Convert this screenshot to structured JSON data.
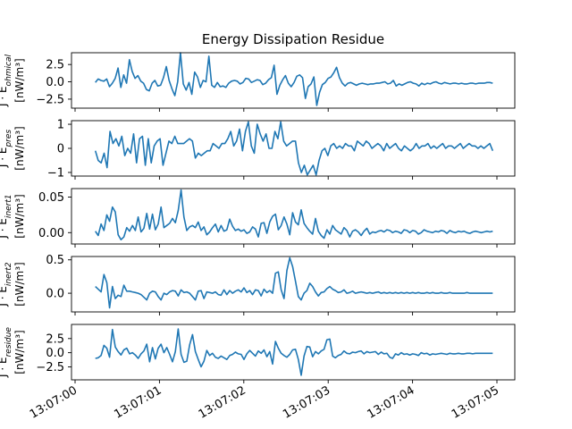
{
  "figure": {
    "title": "Energy Dissipation Residue",
    "line_color": "#1f77b4"
  },
  "chart_data": [
    {
      "type": "line",
      "ylabel_top": "J · E_ohmical",
      "ylabel_unit": "[nW/m³]",
      "ylim": [
        -3.8,
        4.2
      ],
      "yticks": [
        -2.5,
        0.0,
        2.5
      ],
      "ytick_labels": [
        "−2.5",
        "0.0",
        "2.5"
      ],
      "series": [
        {
          "values": [
            -0.1,
            0.4,
            0.2,
            0.1,
            0.4,
            -0.7,
            -0.2,
            0.5,
            2.0,
            -0.8,
            1.0,
            -0.2,
            3.2,
            1.5,
            0.5,
            0.9,
            0.1,
            -0.2,
            -1.1,
            -1.3,
            -0.2,
            0.2,
            -0.6,
            -0.5,
            0.6,
            2.2,
            0.2,
            -1.0,
            -2.0,
            0.0,
            4.2,
            -0.3,
            -1.2,
            -0.1,
            -1.8,
            1.4,
            0.7,
            -0.8,
            0.2,
            0.0,
            3.7,
            -0.5,
            -0.8,
            -0.1,
            -0.7,
            -0.6,
            -0.8,
            -0.2,
            0.1,
            0.2,
            0.1,
            -0.3,
            -0.1,
            0.5,
            0.4,
            -0.1,
            0.1,
            0.3,
            0.2,
            -0.4,
            -0.2,
            0.3,
            0.6,
            2.4,
            -1.8,
            -0.5,
            0.3,
            0.9,
            -0.2,
            -0.7,
            -0.1,
            0.8,
            1.0,
            0.6,
            -2.4,
            -0.7,
            -0.3,
            0.7,
            -3.4,
            -1.5,
            -0.4,
            -0.1,
            0.5,
            0.7,
            1.3,
            2.1,
            0.6,
            -0.2,
            -0.6,
            -0.2,
            -0.1,
            -0.3,
            -0.5,
            -0.3,
            -0.2,
            -0.3,
            -0.4,
            -0.3,
            -0.3,
            -0.2,
            -0.2,
            -0.1,
            0.0,
            -0.3,
            -0.2,
            0.2,
            -0.6,
            -0.3,
            -0.5,
            -0.3,
            -0.1,
            0.0,
            -0.2,
            -0.3,
            -0.6,
            -0.2,
            -0.4,
            -0.2,
            -0.3,
            -0.1,
            0.0,
            -0.2,
            -0.3,
            -0.1,
            -0.2,
            -0.3,
            -0.2,
            -0.2,
            -0.3,
            -0.2,
            -0.3,
            -0.3,
            -0.2,
            -0.2,
            -0.3,
            -0.2,
            -0.2,
            -0.2,
            -0.1,
            -0.1,
            -0.2
          ]
        }
      ]
    },
    {
      "type": "line",
      "ylabel_top": "J · E_pres",
      "ylabel_unit": "[nW/m³]",
      "ylim": [
        -1.15,
        1.15
      ],
      "yticks": [
        -1,
        0,
        1
      ],
      "ytick_labels": [
        "−1",
        "0",
        "1"
      ],
      "series": [
        {
          "values": [
            -0.1,
            -0.5,
            -0.6,
            -0.2,
            -0.8,
            0.7,
            0.2,
            0.4,
            0.1,
            0.5,
            -0.3,
            0.0,
            -0.2,
            0.6,
            -0.6,
            0.4,
            0.5,
            -0.7,
            0.4,
            -0.6,
            0.1,
            0.3,
            0.4,
            -0.7,
            -0.2,
            0.3,
            0.2,
            0.5,
            0.2,
            0.2,
            0.2,
            0.3,
            0.4,
            0.3,
            -0.4,
            -0.2,
            -0.3,
            -0.2,
            -0.1,
            -0.1,
            0.2,
            0.1,
            0.0,
            0.2,
            0.2,
            0.4,
            0.7,
            0.1,
            0.3,
            0.8,
            -0.1,
            0.7,
            1.1,
            0.1,
            -0.2,
            1.0,
            0.6,
            0.3,
            0.6,
            0.0,
            0.0,
            0.7,
            0.4,
            1.1,
            0.3,
            0.1,
            0.2,
            0.3,
            0.3,
            -0.6,
            -1.0,
            -0.7,
            -1.1,
            -0.9,
            -0.7,
            -1.1,
            -0.5,
            -0.1,
            0.0,
            -0.3,
            0.1,
            0.2,
            0.0,
            0.1,
            0.0,
            0.2,
            0.1,
            0.1,
            -0.1,
            0.3,
            0.2,
            0.1,
            0.3,
            0.2,
            0.0,
            0.1,
            0.2,
            0.1,
            -0.1,
            0.2,
            0.0,
            0.1,
            0.2,
            0.0,
            -0.1,
            0.1,
            0.0,
            -0.1,
            0.0,
            0.2,
            0.0,
            0.1,
            0.1,
            0.2,
            0.0,
            0.1,
            0.0,
            0.1,
            0.2,
            0.0,
            0.1,
            0.1,
            0.0,
            0.1,
            0.2,
            0.0,
            0.1,
            0.2,
            0.1,
            0.1,
            0.0,
            0.1,
            0.0,
            0.1,
            0.2,
            -0.1
          ]
        }
      ]
    },
    {
      "type": "line",
      "ylabel_top": "J · E_inert1",
      "ylabel_unit": "[nW/m³]",
      "ylim": [
        -0.016,
        0.062
      ],
      "yticks": [
        0.0,
        0.05
      ],
      "ytick_labels": [
        "0.00",
        "0.05"
      ],
      "series": [
        {
          "values": [
            0.002,
            -0.004,
            0.012,
            0.003,
            0.025,
            0.016,
            0.036,
            0.029,
            -0.003,
            -0.01,
            -0.006,
            0.007,
            0.002,
            0.01,
            0.003,
            0.022,
            0.001,
            0.006,
            0.027,
            0.005,
            0.026,
            0.004,
            0.012,
            0.036,
            0.007,
            0.01,
            0.013,
            0.02,
            0.014,
            0.031,
            0.06,
            0.022,
            0.003,
            0.008,
            0.01,
            0.007,
            0.015,
            0.003,
            0.008,
            -0.003,
            0.001,
            0.007,
            0.012,
            0.001,
            0.01,
            0.002,
            0.004,
            0.019,
            0.009,
            0.003,
            0.005,
            0.002,
            0.004,
            -0.001,
            0.001,
            0.008,
            0.005,
            -0.006,
            0.013,
            0.014,
            -0.001,
            0.015,
            0.023,
            0.026,
            0.004,
            0.01,
            0.022,
            0.012,
            -0.003,
            0.028,
            0.015,
            0.011,
            0.032,
            0.013,
            0.007,
            0.002,
            -0.002,
            0.02,
            0.002,
            -0.004,
            -0.008,
            0.004,
            -0.002,
            0.01,
            0.004,
            0.001,
            -0.002,
            0.007,
            0.003,
            -0.006,
            0.002,
            0.004,
            0.001,
            -0.004,
            0.002,
            0.006,
            -0.002,
            0.001,
            0.0,
            0.002,
            0.003,
            0.001,
            0.004,
            0.003,
            0.0,
            0.002,
            0.001,
            -0.001,
            0.004,
            0.003,
            0.0,
            0.003,
            0.002,
            -0.002,
            0.0,
            0.004,
            0.002,
            0.001,
            0.0,
            0.002,
            0.001,
            0.003,
            0.002,
            -0.001,
            0.003,
            0.001,
            0.0,
            0.002,
            0.001,
            0.002,
            0.0,
            -0.001,
            0.001,
            0.002,
            0.001,
            0.0,
            0.001,
            0.002,
            0.001,
            0.002
          ]
        }
      ]
    },
    {
      "type": "line",
      "ylabel_top": "J · E_inert2",
      "ylabel_unit": "[nW/m³]",
      "ylim": [
        -0.28,
        0.55
      ],
      "yticks": [
        0.0,
        0.5
      ],
      "ytick_labels": [
        "0.0",
        "0.5"
      ],
      "series": [
        {
          "values": [
            0.1,
            0.06,
            0.02,
            0.28,
            0.16,
            -0.22,
            0.1,
            -0.08,
            -0.03,
            -0.05,
            0.12,
            0.03,
            0.03,
            0.02,
            0.01,
            0.0,
            -0.02,
            -0.06,
            -0.1,
            0.0,
            0.03,
            0.02,
            -0.05,
            -0.1,
            0.0,
            -0.02,
            0.02,
            0.04,
            0.03,
            -0.04,
            0.05,
            0.01,
            0.02,
            0.0,
            -0.05,
            -0.1,
            0.03,
            0.04,
            -0.08,
            0.02,
            0.01,
            0.0,
            0.02,
            -0.02,
            -0.03,
            0.05,
            -0.02,
            0.04,
            0.0,
            0.03,
            0.05,
            0.02,
            0.08,
            0.01,
            0.04,
            -0.02,
            0.05,
            0.04,
            -0.04,
            0.06,
            0.01,
            0.04,
            0.0,
            0.3,
            0.32,
            0.05,
            -0.08,
            0.34,
            0.53,
            0.4,
            0.18,
            -0.05,
            -0.1,
            0.0,
            0.04,
            0.15,
            0.1,
            0.02,
            -0.04,
            0.01,
            0.02,
            0.07,
            0.1,
            0.06,
            0.04,
            0.01,
            0.02,
            0.05,
            0.0,
            0.01,
            0.03,
            0.0,
            0.01,
            0.02,
            0.01,
            0.0,
            0.01,
            0.0,
            0.01,
            0.02,
            0.0,
            0.01,
            0.0,
            0.01,
            0.0,
            0.01,
            0.0,
            0.01,
            0.0,
            0.01,
            0.0,
            0.01,
            0.0,
            0.01,
            0.0,
            0.0,
            0.01,
            0.0,
            0.01,
            0.0,
            0.0,
            0.01,
            0.0,
            0.0,
            0.01,
            0.0,
            0.0,
            0.0,
            0.0,
            0.0,
            0.01,
            0.0,
            0.0,
            0.0,
            0.0,
            0.0,
            0.0,
            0.0,
            0.0,
            0.0
          ]
        }
      ]
    },
    {
      "type": "line",
      "ylabel_top": "J · E_residue",
      "ylabel_unit": "[nW/m³]",
      "ylim": [
        -4.8,
        5.0
      ],
      "yticks": [
        -2.5,
        0.0,
        2.5
      ],
      "ytick_labels": [
        "−2.5",
        "0.0",
        "2.5"
      ],
      "series": [
        {
          "values": [
            -1.0,
            -0.9,
            -0.5,
            1.3,
            0.8,
            -0.8,
            4.1,
            1.0,
            0.2,
            -0.4,
            0.5,
            0.8,
            -0.2,
            0.0,
            -0.4,
            -1.0,
            -0.2,
            0.3,
            1.5,
            -1.6,
            0.9,
            -1.1,
            0.8,
            1.5,
            0.0,
            0.9,
            -0.3,
            -1.6,
            0.2,
            4.2,
            -0.3,
            -1.7,
            -1.5,
            1.4,
            3.2,
            0.2,
            -1.2,
            -2.5,
            -1.5,
            0.4,
            -0.5,
            -0.1,
            -0.8,
            -1.0,
            -0.6,
            -0.9,
            -1.2,
            -0.5,
            -0.3,
            0.1,
            -0.2,
            -0.3,
            -1.2,
            -0.2,
            0.4,
            -0.1,
            -0.6,
            0.3,
            -0.1,
            0.5,
            -0.7,
            0.2,
            -2.0,
            2.0,
            0.8,
            -0.1,
            -0.5,
            -0.8,
            -0.3,
            0.5,
            0.6,
            -1.2,
            -4.0,
            -0.6,
            1.1,
            1.0,
            -0.7,
            0.2,
            -0.2,
            0.3,
            0.6,
            2.3,
            2.4,
            -0.6,
            -0.9,
            -0.5,
            -0.3,
            0.3,
            -0.1,
            -0.2,
            0.1,
            0.0,
            0.2,
            0.3,
            -0.2,
            0.2,
            0.0,
            0.1,
            0.2,
            -0.3,
            0.1,
            -0.2,
            -0.1,
            -0.8,
            -1.0,
            -0.2,
            -0.4,
            0.0,
            -0.3,
            -0.2,
            -0.4,
            -0.2,
            -0.3,
            -0.5,
            0.0,
            -0.2,
            -0.1,
            -0.4,
            -0.2,
            -0.3,
            -0.2,
            -0.1,
            -0.2,
            -0.3,
            -0.1,
            -0.2,
            -0.2,
            -0.1,
            -0.2,
            -0.2,
            -0.1,
            -0.1,
            -0.2,
            -0.1,
            -0.1,
            -0.1,
            -0.1,
            -0.1,
            -0.1,
            -0.1
          ]
        }
      ]
    }
  ],
  "x_axis": {
    "start": "13:07:00.24",
    "end": "13:07:04.95",
    "tick_labels": [
      "13:07:00",
      "13:07:01",
      "13:07:02",
      "13:07:03",
      "13:07:04",
      "13:07:05"
    ]
  }
}
